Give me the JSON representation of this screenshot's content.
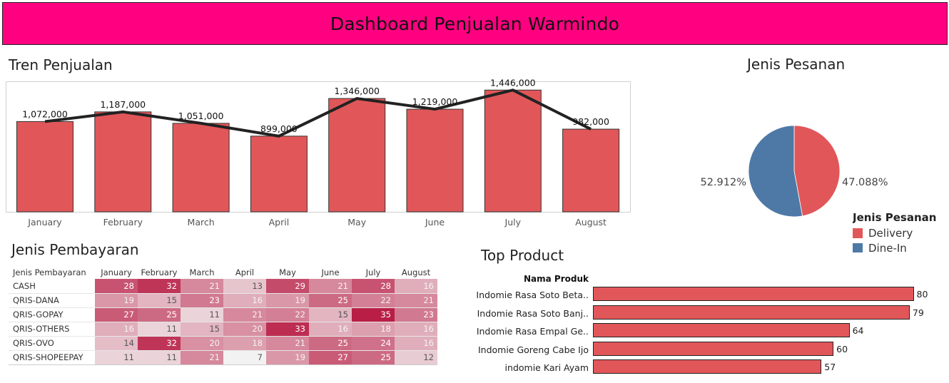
{
  "header": {
    "title": "Dashboard Penjualan Warmindo"
  },
  "titles": {
    "trend": "Tren Penjualan",
    "pie": "Jenis Pesanan",
    "payment": "Jenis Pembayaran",
    "top": "Top Product"
  },
  "colors": {
    "header_bg": "#ff0080",
    "bar": "#e15759",
    "delivery": "#e15759",
    "dine_in": "#4e79a7",
    "line": "#222222"
  },
  "chart_data": [
    {
      "type": "bar",
      "name": "tren-penjualan",
      "title": "Tren Penjualan",
      "categories": [
        "January",
        "February",
        "March",
        "April",
        "May",
        "June",
        "July",
        "August"
      ],
      "values": [
        1072000,
        1187000,
        1051000,
        899000,
        1346000,
        1219000,
        1446000,
        982000
      ],
      "labels": [
        "1,072,000",
        "1,187,000",
        "1,051,000",
        "899,000",
        "1,346,000",
        "1,219,000",
        "1,446,000",
        "982,000"
      ],
      "line_overlay": true,
      "ylim": [
        0,
        1550000
      ],
      "grid": false
    },
    {
      "type": "pie",
      "name": "jenis-pesanan",
      "title": "Jenis Pesanan",
      "legend_title": "Jenis Pesanan",
      "legend_position": "right",
      "slices": [
        {
          "label": "Delivery",
          "value": 47.088,
          "display": "47.088%",
          "color": "#e15759"
        },
        {
          "label": "Dine-In",
          "value": 52.912,
          "display": "52.912%",
          "color": "#4e79a7"
        }
      ]
    },
    {
      "type": "heatmap",
      "name": "jenis-pembayaran",
      "title": "Jenis Pembayaran",
      "row_header": "Jenis Pembayaran",
      "columns": [
        "January",
        "February",
        "March",
        "April",
        "May",
        "June",
        "July",
        "August"
      ],
      "rows": [
        {
          "label": "CASH",
          "values": [
            28,
            32,
            21,
            13,
            29,
            21,
            28,
            16
          ]
        },
        {
          "label": "QRIS-DANA",
          "values": [
            19,
            15,
            23,
            16,
            19,
            25,
            22,
            21
          ]
        },
        {
          "label": "QRIS-GOPAY",
          "values": [
            27,
            25,
            11,
            21,
            22,
            15,
            35,
            23
          ]
        },
        {
          "label": "QRIS-OTHERS",
          "values": [
            16,
            11,
            15,
            20,
            33,
            16,
            18,
            16
          ]
        },
        {
          "label": "QRIS-OVO",
          "values": [
            14,
            32,
            20,
            18,
            21,
            25,
            24,
            16
          ]
        },
        {
          "label": "QRIS-SHOPEEPAY",
          "values": [
            11,
            11,
            21,
            7,
            19,
            27,
            25,
            12
          ]
        }
      ],
      "range": [
        7,
        35
      ]
    },
    {
      "type": "bar",
      "name": "top-product",
      "title": "Top Product",
      "orientation": "horizontal",
      "column_header": "Nama Produk",
      "categories": [
        "Indomie Rasa Soto Beta..",
        "Indomie Rasa Soto Banj..",
        "Indomie Rasa Empal Ge..",
        "Indomie Goreng Cabe Ijo",
        "indomie Kari Ayam"
      ],
      "values": [
        80,
        79,
        64,
        60,
        57
      ],
      "xlim": [
        0,
        84
      ]
    }
  ]
}
